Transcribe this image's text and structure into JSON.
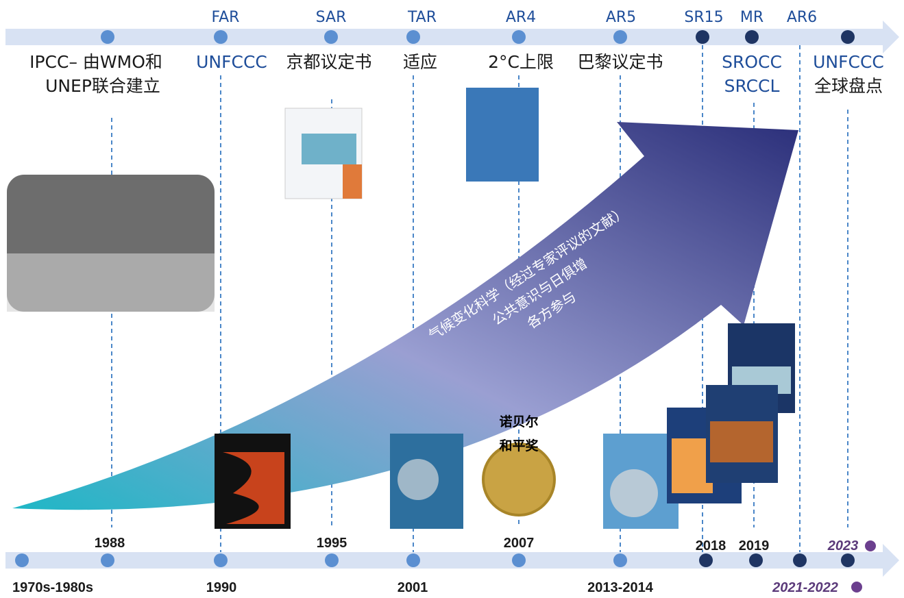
{
  "top_labels": [
    "FAR",
    "SAR",
    "TAR",
    "AR4",
    "AR5",
    "SR15",
    "MR",
    "AR6"
  ],
  "events": [
    {
      "lines": [
        "IPCC– 由WMO和",
        "UNEP联合建立"
      ]
    },
    {
      "lines": [
        "UNFCCC"
      ]
    },
    {
      "lines": [
        "京都议定书"
      ]
    },
    {
      "lines": [
        "适应"
      ]
    },
    {
      "lines": [
        "2°C上限"
      ]
    },
    {
      "lines": [
        "巴黎议定书"
      ]
    },
    {
      "lines": [
        "SROCC",
        "SRCCL"
      ]
    },
    {
      "lines": [
        "UNFCCC",
        "全球盘点"
      ]
    }
  ],
  "years": [
    "1970s-1980s",
    "1988",
    "1990",
    "1995",
    "2001",
    "2007",
    "2013-2014",
    "2018",
    "2019",
    "2021-2022",
    "2023"
  ],
  "arrow_text": [
    "气候变化科学（经过专家评议的文献）",
    "公共意识与日俱增",
    "各方参与"
  ],
  "nobel": [
    "诺贝尔",
    "和平奖"
  ]
}
